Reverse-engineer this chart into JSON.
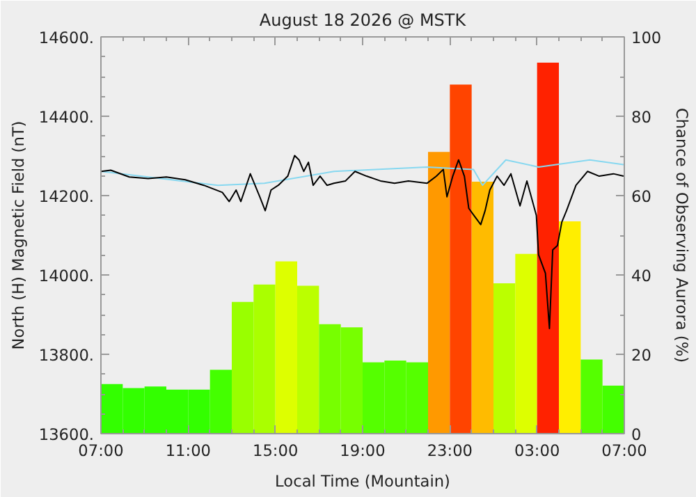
{
  "chart_data": {
    "type": "bar",
    "title": "August 18 2026 @ MSTK",
    "xlabel": "Local Time (Mountain)",
    "ylabel": "North (H) Magnetic Field (nT)",
    "y2label": "Chance of Observing Aurora (%)",
    "xlim": [
      "2026-08-18T07:00",
      "2026-08-19T07:00"
    ],
    "xticks": [
      {
        "value": "2026-08-18T07:00",
        "label": "07:00"
      },
      {
        "value": "2026-08-18T11:00",
        "label": "11:00"
      },
      {
        "value": "2026-08-18T15:00",
        "label": "15:00"
      },
      {
        "value": "2026-08-18T19:00",
        "label": "19:00"
      },
      {
        "value": "2026-08-18T23:00",
        "label": "23:00"
      },
      {
        "value": "2026-08-19T03:00",
        "label": "03:00"
      },
      {
        "value": "2026-08-19T07:00",
        "label": "07:00"
      }
    ],
    "ylim": [
      13600,
      14600
    ],
    "yticks": [
      {
        "value": 13600,
        "label": "13600."
      },
      {
        "value": 13800,
        "label": "13800."
      },
      {
        "value": 14000,
        "label": "14000."
      },
      {
        "value": 14200,
        "label": "14200."
      },
      {
        "value": 14400,
        "label": "14400."
      },
      {
        "value": 14600,
        "label": "14600."
      }
    ],
    "y2lim": [
      0,
      100
    ],
    "y2ticks": [
      0,
      20,
      40,
      60,
      80,
      100
    ],
    "grid": false,
    "series": [
      {
        "axis": "y2",
        "x": [
          "2026-08-18T07:30",
          "2026-08-18T08:30",
          "2026-08-18T09:30",
          "2026-08-18T10:30",
          "2026-08-18T11:30",
          "2026-08-18T12:30",
          "2026-08-18T13:30",
          "2026-08-18T14:30",
          "2026-08-18T15:30",
          "2026-08-18T16:30",
          "2026-08-18T17:30",
          "2026-08-18T18:30",
          "2026-08-18T19:30",
          "2026-08-18T20:30",
          "2026-08-18T21:30",
          "2026-08-18T22:30",
          "2026-08-18T23:30",
          "2026-08-19T00:30",
          "2026-08-19T01:30",
          "2026-08-19T02:30",
          "2026-08-19T03:30",
          "2026-08-19T04:30",
          "2026-08-19T05:30",
          "2026-08-19T06:30"
        ],
        "values": [
          12.5,
          11.5,
          11.9,
          11.1,
          11.1,
          16.1,
          33.2,
          37.6,
          43.4,
          37.3,
          27.6,
          26.8,
          18.0,
          18.4,
          18.0,
          71,
          88,
          63.5,
          37.9,
          45.3,
          93.5,
          53.5,
          18.7,
          12.1
        ],
        "colors": [
          "#33ff00",
          "#33ff00",
          "#33ff00",
          "#33ff00",
          "#33ff00",
          "#44ff00",
          "#99ff00",
          "#aaff00",
          "#ddff00",
          "#bbff00",
          "#77ff00",
          "#77ff00",
          "#55ff00",
          "#55ff00",
          "#55ff00",
          "#ff9900",
          "#ff4400",
          "#ffbb00",
          "#bbff00",
          "#ddff00",
          "#ff2200",
          "#ffee00",
          "#55ff00",
          "#44ff00"
        ]
      },
      {
        "type": "line",
        "color": "#87d8f0",
        "x": [
          "2026-08-18T07:01",
          "2026-08-18T12:22",
          "2026-08-18T14:30",
          "2026-08-18T17:41",
          "2026-08-18T21:57",
          "2026-08-19T00:05",
          "2026-08-19T00:30",
          "2026-08-19T01:34",
          "2026-08-19T03:04",
          "2026-08-19T05:25",
          "2026-08-19T06:58"
        ],
        "values": [
          14261,
          14226,
          14231,
          14261,
          14272,
          14266,
          14226,
          14290,
          14272,
          14290,
          14278
        ]
      },
      {
        "type": "line",
        "color": "#000000",
        "x": [
          "2026-08-18T07:01",
          "2026-08-18T07:27",
          "2026-08-18T08:18",
          "2026-08-18T09:10",
          "2026-08-18T10:00",
          "2026-08-18T10:52",
          "2026-08-18T11:43",
          "2026-08-18T12:34",
          "2026-08-18T12:53",
          "2026-08-18T13:12",
          "2026-08-18T13:25",
          "2026-08-18T13:51",
          "2026-08-18T14:04",
          "2026-08-18T14:17",
          "2026-08-18T14:32",
          "2026-08-18T14:48",
          "2026-08-18T15:08",
          "2026-08-18T15:34",
          "2026-08-18T15:53",
          "2026-08-18T16:05",
          "2026-08-18T16:18",
          "2026-08-18T16:31",
          "2026-08-18T16:44",
          "2026-08-18T17:03",
          "2026-08-18T17:22",
          "2026-08-18T17:41",
          "2026-08-18T18:13",
          "2026-08-18T18:39",
          "2026-08-18T19:11",
          "2026-08-18T19:49",
          "2026-08-18T20:28",
          "2026-08-18T21:06",
          "2026-08-18T21:57",
          "2026-08-18T22:23",
          "2026-08-18T22:42",
          "2026-08-18T22:52",
          "2026-08-18T23:08",
          "2026-08-18T23:24",
          "2026-08-18T23:40",
          "2026-08-18T23:52",
          "2026-08-19T00:11",
          "2026-08-19T00:25",
          "2026-08-19T00:37",
          "2026-08-19T00:50",
          "2026-08-19T01:10",
          "2026-08-19T01:29",
          "2026-08-19T01:48",
          "2026-08-19T02:13",
          "2026-08-19T02:32",
          "2026-08-19T02:58",
          "2026-08-19T03:04",
          "2026-08-19T03:23",
          "2026-08-19T03:34",
          "2026-08-19T03:43",
          "2026-08-19T03:56",
          "2026-08-19T04:08",
          "2026-08-19T04:21",
          "2026-08-19T04:47",
          "2026-08-19T05:19",
          "2026-08-19T05:51",
          "2026-08-19T06:30",
          "2026-08-19T06:58"
        ],
        "values": [
          14261,
          14264,
          14247,
          14243,
          14247,
          14240,
          14226,
          14208,
          14185,
          14214,
          14185,
          14255,
          14226,
          14197,
          14162,
          14214,
          14226,
          14249,
          14301,
          14290,
          14261,
          14284,
          14226,
          14249,
          14226,
          14231,
          14237,
          14261,
          14249,
          14237,
          14231,
          14237,
          14231,
          14249,
          14266,
          14197,
          14249,
          14290,
          14249,
          14168,
          14144,
          14127,
          14162,
          14214,
          14249,
          14226,
          14255,
          14174,
          14237,
          14150,
          14051,
          14004,
          13865,
          14063,
          14074,
          14133,
          14162,
          14226,
          14261,
          14249,
          14255,
          14249
        ]
      }
    ]
  }
}
